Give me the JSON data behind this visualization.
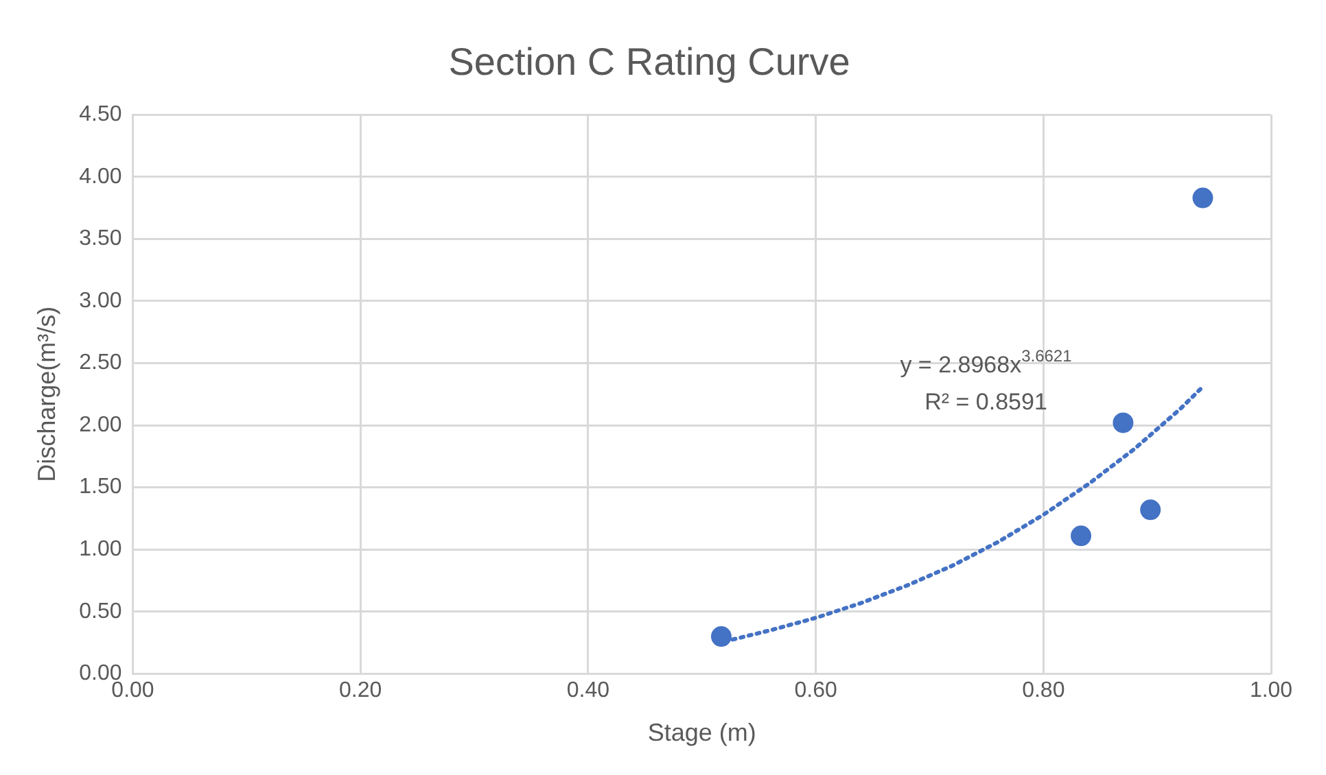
{
  "chart_data": {
    "type": "scatter",
    "title": "Section C Rating Curve",
    "xlabel": "Stage (m)",
    "ylabel": "Discharge(m³/s)",
    "xlim": [
      0,
      1
    ],
    "xticks": [
      {
        "value": 0,
        "label": "0.00"
      },
      {
        "value": 0.2,
        "label": "0.20"
      },
      {
        "value": 0.4,
        "label": "0.40"
      },
      {
        "value": 0.6,
        "label": "0.60"
      },
      {
        "value": 0.8,
        "label": "0.80"
      },
      {
        "value": 1,
        "label": "1.00"
      }
    ],
    "ylim": [
      0,
      4.5
    ],
    "yticks": [
      {
        "value": 0,
        "label": "0.00"
      },
      {
        "value": 0.5,
        "label": "0.50"
      },
      {
        "value": 1,
        "label": "1.00"
      },
      {
        "value": 1.5,
        "label": "1.50"
      },
      {
        "value": 2,
        "label": "2.00"
      },
      {
        "value": 2.5,
        "label": "2.50"
      },
      {
        "value": 3,
        "label": "3.00"
      },
      {
        "value": 3.5,
        "label": "3.50"
      },
      {
        "value": 4,
        "label": "4.00"
      },
      {
        "value": 4.5,
        "label": "4.50"
      }
    ],
    "grid": true,
    "legend": false,
    "series": [
      {
        "type": "scatter",
        "color": "#4472c4",
        "marker": "circle",
        "x": [
          0.517,
          0.833,
          0.87,
          0.894,
          0.94
        ],
        "values": [
          0.3,
          1.11,
          2.02,
          1.32,
          3.83
        ]
      },
      {
        "type": "line",
        "color": "#4472c4",
        "marker": "none",
        "line_style": "dotted",
        "x": [
          0.52,
          0.56,
          0.6,
          0.64,
          0.68,
          0.72,
          0.76,
          0.8,
          0.84,
          0.88,
          0.92,
          0.94
        ],
        "values": [
          0.26,
          0.35,
          0.45,
          0.57,
          0.71,
          0.87,
          1.06,
          1.28,
          1.53,
          1.81,
          2.13,
          2.31
        ]
      }
    ],
    "annotations": [
      "y = 2.8968x$^{3.6621}$",
      "R² = 0.8591"
    ]
  }
}
